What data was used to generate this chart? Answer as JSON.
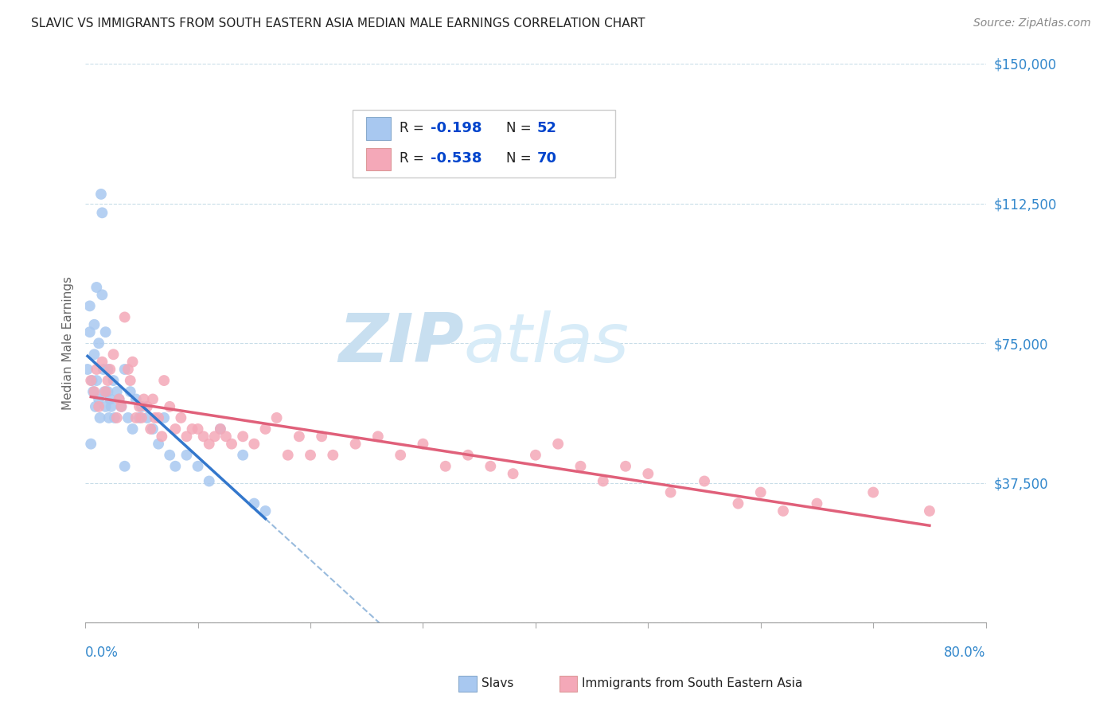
{
  "title": "SLAVIC VS IMMIGRANTS FROM SOUTH EASTERN ASIA MEDIAN MALE EARNINGS CORRELATION CHART",
  "source": "Source: ZipAtlas.com",
  "ylabel": "Median Male Earnings",
  "y_ticks": [
    0,
    37500,
    75000,
    112500,
    150000
  ],
  "y_tick_labels": [
    "",
    "$37,500",
    "$75,000",
    "$112,500",
    "$150,000"
  ],
  "x_min": 0.0,
  "x_max": 0.8,
  "y_min": 0,
  "y_max": 150000,
  "slavs_R": -0.198,
  "slavs_N": 52,
  "sea_R": -0.538,
  "sea_N": 70,
  "slavs_color": "#a8c8f0",
  "sea_color": "#f4a8b8",
  "slavs_line_color": "#3377cc",
  "sea_line_color": "#e0607a",
  "dashed_line_color": "#99bbdd",
  "watermark_zip_color": "#c8dff0",
  "watermark_atlas_color": "#d8ecf8",
  "legend_R_color": "#0044cc",
  "legend_N_color": "#0044cc",
  "title_color": "#222222",
  "axis_label_color": "#3388cc",
  "slavs_x": [
    0.002,
    0.004,
    0.004,
    0.006,
    0.007,
    0.008,
    0.008,
    0.009,
    0.01,
    0.01,
    0.012,
    0.012,
    0.013,
    0.014,
    0.015,
    0.015,
    0.016,
    0.017,
    0.018,
    0.018,
    0.02,
    0.021,
    0.022,
    0.023,
    0.025,
    0.026,
    0.028,
    0.03,
    0.032,
    0.035,
    0.038,
    0.04,
    0.042,
    0.045,
    0.048,
    0.05,
    0.055,
    0.06,
    0.065,
    0.07,
    0.075,
    0.08,
    0.09,
    0.1,
    0.11,
    0.12,
    0.14,
    0.15,
    0.16,
    0.005,
    0.02,
    0.035
  ],
  "slavs_y": [
    68000,
    78000,
    85000,
    65000,
    62000,
    72000,
    80000,
    58000,
    65000,
    90000,
    75000,
    60000,
    55000,
    115000,
    110000,
    88000,
    68000,
    62000,
    58000,
    78000,
    68000,
    55000,
    60000,
    58000,
    65000,
    55000,
    62000,
    60000,
    58000,
    68000,
    55000,
    62000,
    52000,
    60000,
    55000,
    58000,
    55000,
    52000,
    48000,
    55000,
    45000,
    42000,
    45000,
    42000,
    38000,
    52000,
    45000,
    32000,
    30000,
    48000,
    62000,
    42000
  ],
  "sea_x": [
    0.005,
    0.008,
    0.01,
    0.012,
    0.015,
    0.018,
    0.02,
    0.022,
    0.025,
    0.028,
    0.03,
    0.032,
    0.035,
    0.038,
    0.04,
    0.042,
    0.045,
    0.048,
    0.05,
    0.052,
    0.055,
    0.058,
    0.06,
    0.062,
    0.065,
    0.068,
    0.07,
    0.075,
    0.08,
    0.085,
    0.09,
    0.095,
    0.1,
    0.105,
    0.11,
    0.115,
    0.12,
    0.125,
    0.13,
    0.14,
    0.15,
    0.16,
    0.17,
    0.18,
    0.19,
    0.2,
    0.21,
    0.22,
    0.24,
    0.26,
    0.28,
    0.3,
    0.32,
    0.34,
    0.36,
    0.38,
    0.4,
    0.42,
    0.44,
    0.46,
    0.48,
    0.5,
    0.52,
    0.55,
    0.58,
    0.6,
    0.62,
    0.65,
    0.7,
    0.75
  ],
  "sea_y": [
    65000,
    62000,
    68000,
    58000,
    70000,
    62000,
    65000,
    68000,
    72000,
    55000,
    60000,
    58000,
    82000,
    68000,
    65000,
    70000,
    55000,
    58000,
    55000,
    60000,
    58000,
    52000,
    60000,
    55000,
    55000,
    50000,
    65000,
    58000,
    52000,
    55000,
    50000,
    52000,
    52000,
    50000,
    48000,
    50000,
    52000,
    50000,
    48000,
    50000,
    48000,
    52000,
    55000,
    45000,
    50000,
    45000,
    50000,
    45000,
    48000,
    50000,
    45000,
    48000,
    42000,
    45000,
    42000,
    40000,
    45000,
    48000,
    42000,
    38000,
    42000,
    40000,
    35000,
    38000,
    32000,
    35000,
    30000,
    32000,
    35000,
    30000
  ]
}
